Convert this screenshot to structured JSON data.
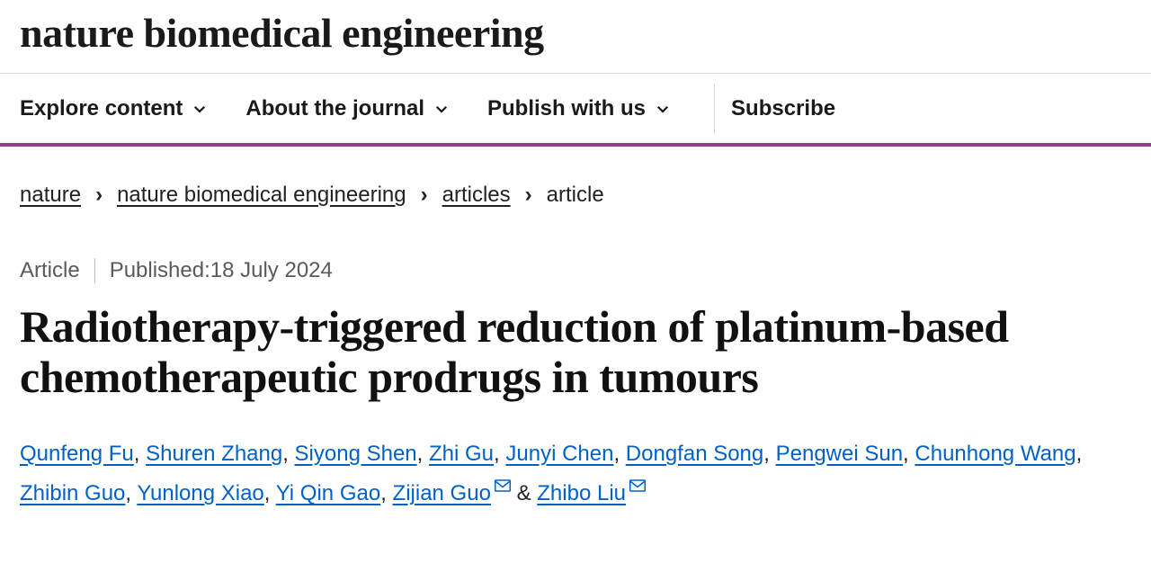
{
  "journal_name": "nature biomedical engineering",
  "nav": {
    "items": [
      {
        "label": "Explore content",
        "has_dropdown": true
      },
      {
        "label": "About the journal",
        "has_dropdown": true
      },
      {
        "label": "Publish with us",
        "has_dropdown": true
      }
    ],
    "subscribe": "Subscribe"
  },
  "accent_color": "#9b3b8f",
  "breadcrumbs": {
    "items": [
      {
        "label": "nature",
        "link": true
      },
      {
        "label": "nature biomedical engineering",
        "link": true
      },
      {
        "label": "articles",
        "link": true
      },
      {
        "label": "article",
        "link": false
      }
    ],
    "separator": "›"
  },
  "meta": {
    "type": "Article",
    "published_prefix": "Published: ",
    "published_date": "18 July 2024"
  },
  "title": "Radiotherapy-triggered reduction of platinum-based chemotherapeutic prodrugs in tumours",
  "authors": [
    {
      "name": "Qunfeng Fu",
      "corresponding": false
    },
    {
      "name": "Shuren Zhang",
      "corresponding": false
    },
    {
      "name": "Siyong Shen",
      "corresponding": false
    },
    {
      "name": "Zhi Gu",
      "corresponding": false
    },
    {
      "name": "Junyi Chen",
      "corresponding": false
    },
    {
      "name": "Dongfan Song",
      "corresponding": false
    },
    {
      "name": "Pengwei Sun",
      "corresponding": false
    },
    {
      "name": "Chunhong Wang",
      "corresponding": false
    },
    {
      "name": "Zhibin Guo",
      "corresponding": false
    },
    {
      "name": "Yunlong Xiao",
      "corresponding": false
    },
    {
      "name": "Yi Qin Gao",
      "corresponding": false
    },
    {
      "name": "Zijian Guo",
      "corresponding": true
    },
    {
      "name": "Zhibo Liu",
      "corresponding": true
    }
  ],
  "link_color": "#0061c6"
}
